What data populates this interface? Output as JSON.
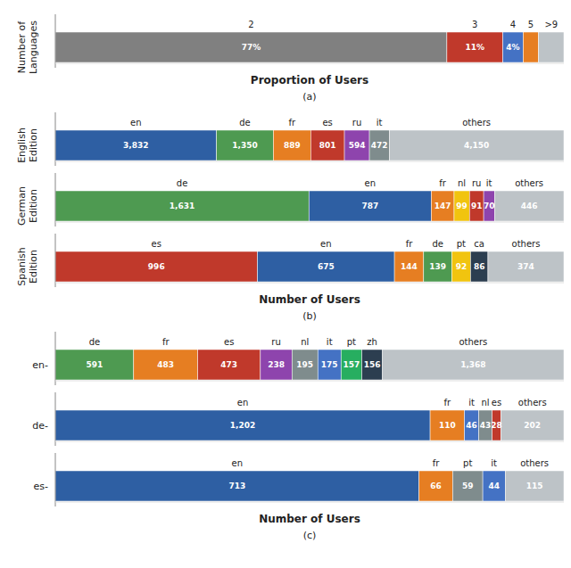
{
  "chart_data": [
    {
      "type": "bar",
      "orientation": "horizontal",
      "stacked": true,
      "data_labels": true,
      "tick_labels": false,
      "ylabel": "Number of\nLanguages",
      "xlabel": "Proportion of Users",
      "subtitle": "(a)",
      "xlim": [
        0,
        100
      ],
      "xticks": [],
      "series": [
        {
          "name": "2",
          "color": "#808080",
          "values": [
            77
          ],
          "value_labels": [
            "77%"
          ]
        },
        {
          "name": "3",
          "color": "#c0392b",
          "values": [
            11
          ],
          "value_labels": [
            "11%"
          ]
        },
        {
          "name": "4",
          "color": "#4472c4",
          "values": [
            4
          ],
          "value_labels": [
            "4%"
          ]
        },
        {
          "name": "5",
          "color": "#e67e22",
          "values": [
            3
          ]
        },
        {
          "name": ">9",
          "color": "#bdc3c7",
          "values": [
            5
          ]
        }
      ]
    },
    {
      "type": "bar",
      "orientation": "horizontal",
      "stacked": true,
      "data_labels": true,
      "tick_labels": false,
      "ylabel": "English\nEdition",
      "xlim": [
        0,
        12088
      ],
      "xticks": [],
      "series": [
        {
          "name": "en",
          "color": "#2e5fa3",
          "values": [
            3832
          ],
          "value_labels": [
            "3,832"
          ]
        },
        {
          "name": "de",
          "color": "#4e9a51",
          "values": [
            1350
          ],
          "value_labels": [
            "1,350"
          ]
        },
        {
          "name": "fr",
          "color": "#e67e22",
          "values": [
            889
          ],
          "value_labels": [
            "889"
          ]
        },
        {
          "name": "es",
          "color": "#c0392b",
          "values": [
            801
          ],
          "value_labels": [
            "801"
          ]
        },
        {
          "name": "ru",
          "color": "#8e44ad",
          "values": [
            594
          ],
          "value_labels": [
            "594"
          ]
        },
        {
          "name": "it",
          "color": "#7f8c8d",
          "values": [
            472
          ],
          "value_labels": [
            "472"
          ]
        },
        {
          "name": "others",
          "color": "#bdc3c7",
          "values": [
            4150
          ],
          "value_labels": [
            "4,150"
          ]
        }
      ]
    },
    {
      "type": "bar",
      "orientation": "horizontal",
      "stacked": true,
      "data_labels": true,
      "tick_labels": false,
      "ylabel": "German\nEdition",
      "xlim": [
        0,
        3271
      ],
      "xticks": [],
      "series": [
        {
          "name": "de",
          "color": "#4e9a51",
          "values": [
            1631
          ],
          "value_labels": [
            "1,631"
          ]
        },
        {
          "name": "en",
          "color": "#2e5fa3",
          "values": [
            787
          ],
          "value_labels": [
            "787"
          ]
        },
        {
          "name": "fr",
          "color": "#e67e22",
          "values": [
            147
          ],
          "value_labels": [
            "147"
          ]
        },
        {
          "name": "nl",
          "color": "#f1c40f",
          "values": [
            99
          ],
          "value_labels": [
            "99"
          ]
        },
        {
          "name": "ru",
          "color": "#c0392b",
          "values": [
            91
          ],
          "value_labels": [
            "91"
          ]
        },
        {
          "name": "it",
          "color": "#8e44ad",
          "values": [
            70
          ],
          "value_labels": [
            "70"
          ]
        },
        {
          "name": "others",
          "color": "#bdc3c7",
          "values": [
            446
          ],
          "value_labels": [
            "446"
          ]
        }
      ]
    },
    {
      "type": "bar",
      "orientation": "horizontal",
      "stacked": true,
      "data_labels": true,
      "tick_labels": false,
      "ylabel": "Spanish\nEdition",
      "xlabel": "Number of Users",
      "subtitle": "(b)",
      "xlim": [
        0,
        2506
      ],
      "xticks": [],
      "series": [
        {
          "name": "es",
          "color": "#c0392b",
          "values": [
            996
          ],
          "value_labels": [
            "996"
          ]
        },
        {
          "name": "en",
          "color": "#2e5fa3",
          "values": [
            675
          ],
          "value_labels": [
            "675"
          ]
        },
        {
          "name": "fr",
          "color": "#e67e22",
          "values": [
            144
          ],
          "value_labels": [
            "144"
          ]
        },
        {
          "name": "de",
          "color": "#4e9a51",
          "values": [
            139
          ],
          "value_labels": [
            "139"
          ]
        },
        {
          "name": "pt",
          "color": "#f1c40f",
          "values": [
            92
          ],
          "value_labels": [
            "92"
          ]
        },
        {
          "name": "ca",
          "color": "#2c3e50",
          "values": [
            86
          ],
          "value_labels": [
            "86"
          ]
        },
        {
          "name": "others",
          "color": "#bdc3c7",
          "values": [
            374
          ],
          "value_labels": [
            "374"
          ]
        }
      ]
    },
    {
      "type": "bar",
      "orientation": "horizontal",
      "stacked": true,
      "data_labels": true,
      "tick_labels": false,
      "ylabel": "en-",
      "xlim": [
        0,
        3836
      ],
      "xticks": [],
      "series": [
        {
          "name": "de",
          "color": "#4e9a51",
          "values": [
            591
          ],
          "value_labels": [
            "591"
          ]
        },
        {
          "name": "fr",
          "color": "#e67e22",
          "values": [
            483
          ],
          "value_labels": [
            "483"
          ]
        },
        {
          "name": "es",
          "color": "#c0392b",
          "values": [
            473
          ],
          "value_labels": [
            "473"
          ]
        },
        {
          "name": "ru",
          "color": "#8e44ad",
          "values": [
            238
          ],
          "value_labels": [
            "238"
          ]
        },
        {
          "name": "nl",
          "color": "#7f8c8d",
          "values": [
            195
          ],
          "value_labels": [
            "195"
          ]
        },
        {
          "name": "it",
          "color": "#4472c4",
          "values": [
            175
          ],
          "value_labels": [
            "175"
          ]
        },
        {
          "name": "pt",
          "color": "#27ae60",
          "values": [
            157
          ],
          "value_labels": [
            "157"
          ]
        },
        {
          "name": "zh",
          "color": "#2c3e50",
          "values": [
            156
          ],
          "value_labels": [
            "156"
          ]
        },
        {
          "name": "others",
          "color": "#bdc3c7",
          "values": [
            1368
          ],
          "value_labels": [
            "1,368"
          ]
        }
      ]
    },
    {
      "type": "bar",
      "orientation": "horizontal",
      "stacked": true,
      "data_labels": true,
      "tick_labels": false,
      "ylabel": "de-",
      "xlim": [
        0,
        1631
      ],
      "xticks": [],
      "series": [
        {
          "name": "en",
          "color": "#2e5fa3",
          "values": [
            1202
          ],
          "value_labels": [
            "1,202"
          ]
        },
        {
          "name": "fr",
          "color": "#e67e22",
          "values": [
            110
          ],
          "value_labels": [
            "110"
          ]
        },
        {
          "name": "it",
          "color": "#4472c4",
          "values": [
            46
          ],
          "value_labels": [
            "46"
          ]
        },
        {
          "name": "nl",
          "color": "#7f8c8d",
          "values": [
            43
          ],
          "value_labels": [
            "43"
          ]
        },
        {
          "name": "es",
          "color": "#c0392b",
          "values": [
            28
          ],
          "value_labels": [
            "28"
          ]
        },
        {
          "name": "others",
          "color": "#bdc3c7",
          "values": [
            202
          ],
          "value_labels": [
            "202"
          ]
        }
      ]
    },
    {
      "type": "bar",
      "orientation": "horizontal",
      "stacked": true,
      "data_labels": true,
      "tick_labels": false,
      "ylabel": "es-",
      "xlabel": "Number of Users",
      "subtitle": "(c)",
      "xlim": [
        0,
        997
      ],
      "xticks": [],
      "series": [
        {
          "name": "en",
          "color": "#2e5fa3",
          "values": [
            713
          ],
          "value_labels": [
            "713"
          ]
        },
        {
          "name": "fr",
          "color": "#e67e22",
          "values": [
            66
          ],
          "value_labels": [
            "66"
          ]
        },
        {
          "name": "pt",
          "color": "#7f8c8d",
          "values": [
            59
          ],
          "value_labels": [
            "59"
          ]
        },
        {
          "name": "it",
          "color": "#4472c4",
          "values": [
            44
          ],
          "value_labels": [
            "44"
          ]
        },
        {
          "name": "others",
          "color": "#bdc3c7",
          "values": [
            115
          ],
          "value_labels": [
            "115"
          ]
        }
      ]
    }
  ]
}
